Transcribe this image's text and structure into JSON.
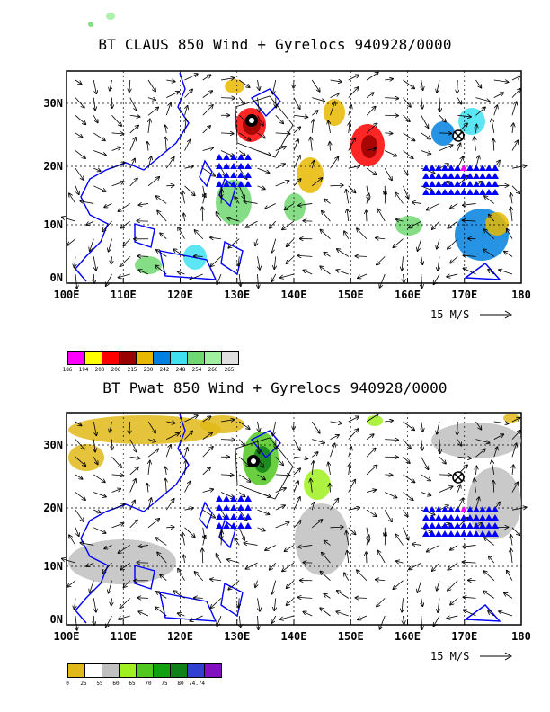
{
  "top_panel": {
    "title": "BT CLAUS 850 Wind + Gyrelocs 940928/0000",
    "x_ticks": [
      "100E",
      "110E",
      "120E",
      "130E",
      "140E",
      "150E",
      "160E",
      "170E",
      "180"
    ],
    "y_ticks": [
      "30N",
      "20N",
      "10N",
      "0N"
    ],
    "scale_label": "15 M/S",
    "colorbar": {
      "colors": [
        "#ff00ff",
        "#ffff00",
        "#ff0000",
        "#990000",
        "#e8b800",
        "#0080e0",
        "#40e0f0",
        "#70d870",
        "#a0f0a0",
        "#e0e0e0"
      ],
      "labels": [
        "186",
        "194",
        "200",
        "206",
        "215",
        "230",
        "242",
        "248",
        "254",
        "260",
        "265"
      ]
    }
  },
  "bottom_panel": {
    "title": "BT Pwat 850 Wind + Gyrelocs 940928/0000",
    "x_ticks": [
      "100E",
      "110E",
      "120E",
      "130E",
      "140E",
      "150E",
      "160E",
      "170E",
      "180"
    ],
    "y_ticks": [
      "30N",
      "20N",
      "10N",
      "0N"
    ],
    "scale_label": "15 M/S",
    "colorbar": {
      "colors": [
        "#e0b818",
        "#ffffff",
        "#c0c0c0",
        "#a0f020",
        "#50c820",
        "#10a010",
        "#108018",
        "#3040d0",
        "#8010c0"
      ],
      "labels": [
        "0",
        "25",
        "55",
        "60",
        "65",
        "70",
        "75",
        "80",
        "74.74"
      ]
    }
  },
  "map_colors": {
    "coast": "#0000ff",
    "gyre_marker": "#0000ff",
    "gyre_center": "#ff00ff"
  }
}
